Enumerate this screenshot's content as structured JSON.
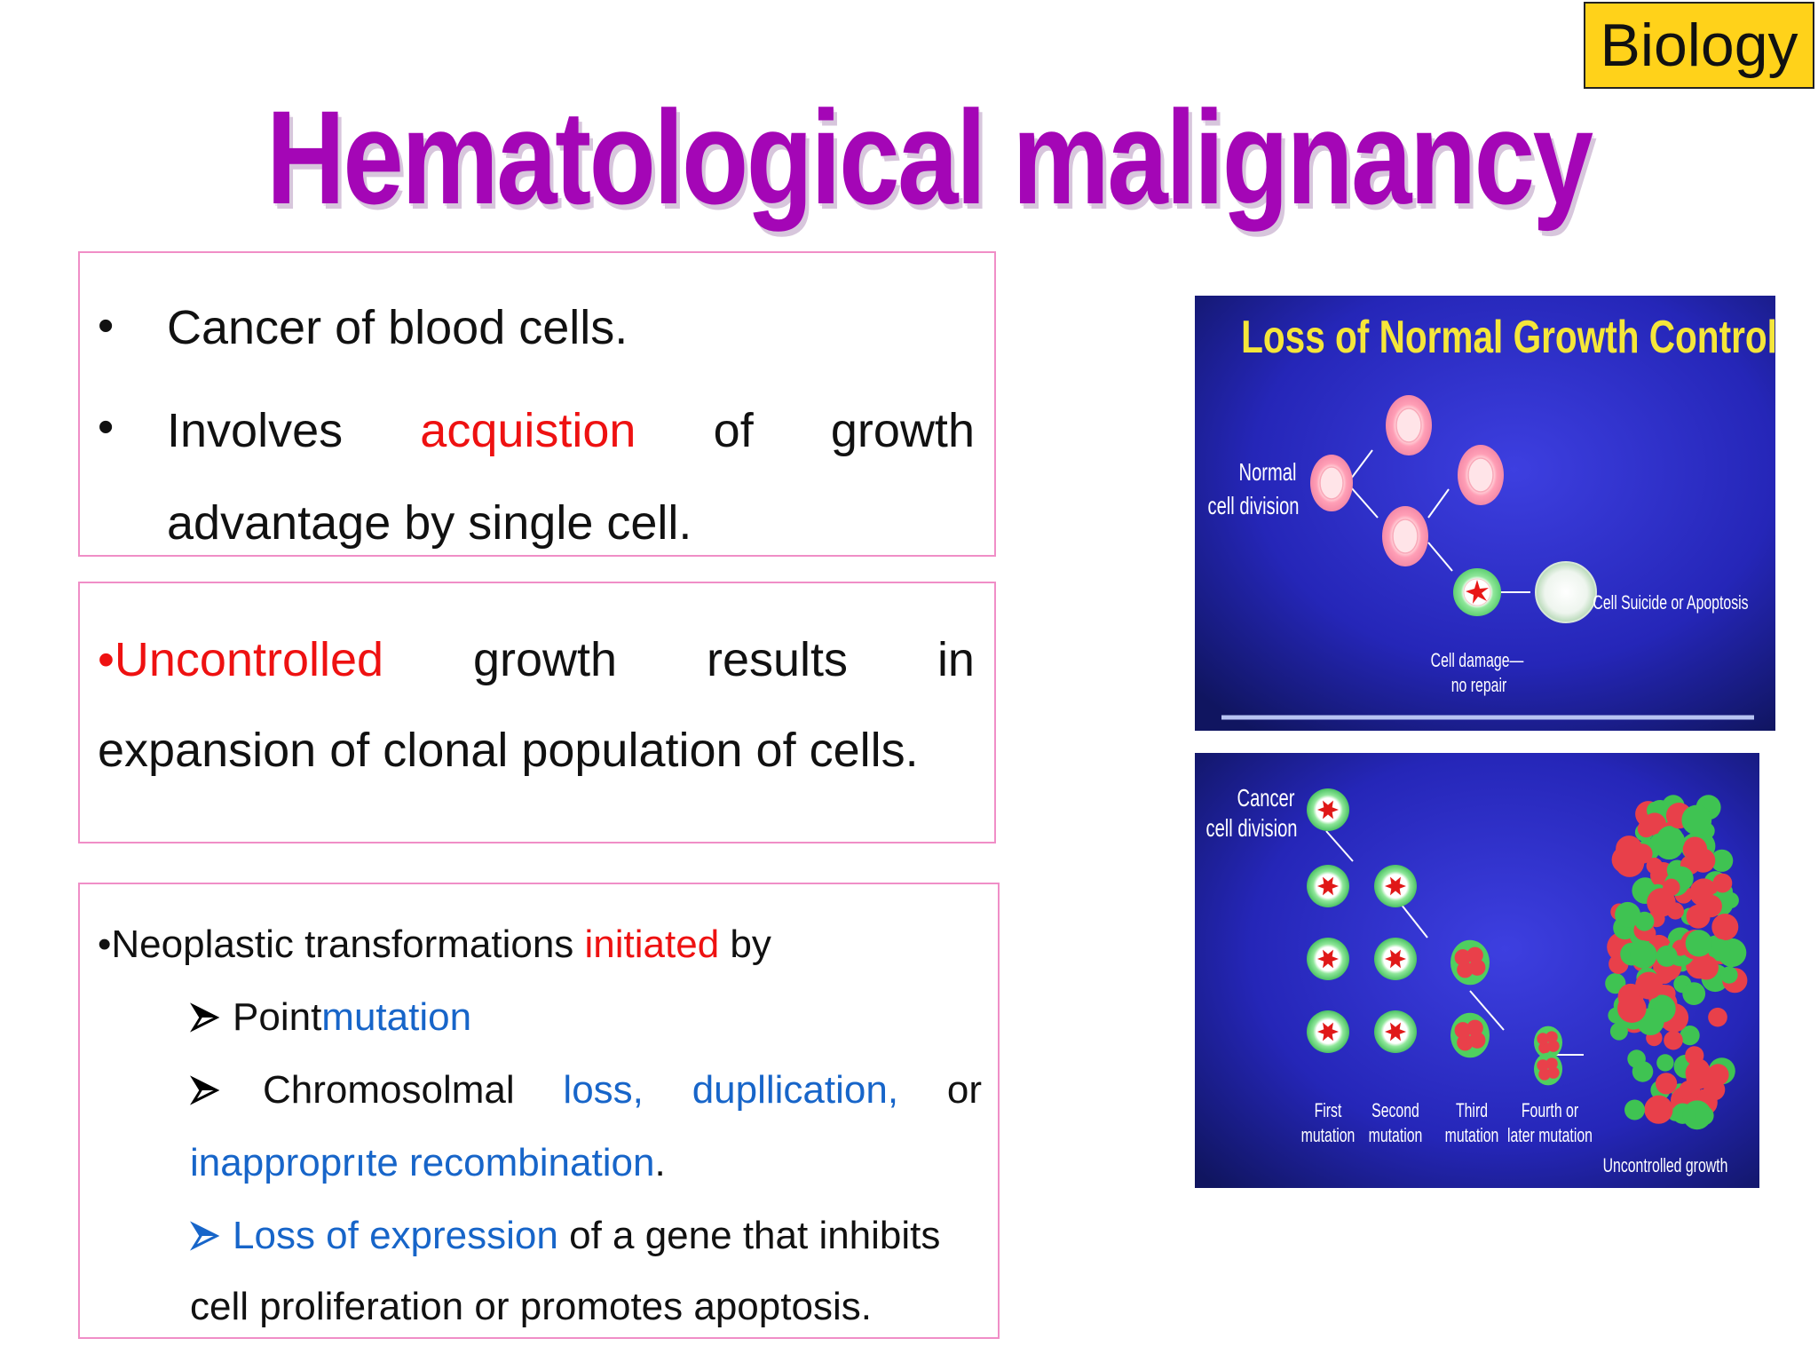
{
  "tag": {
    "label": "Biology"
  },
  "title": "Hematological malignancy",
  "box1": {
    "bullet1": "Cancer of blood cells.",
    "bullet2_words": [
      "Involves",
      "acquistion",
      "of",
      "growth"
    ],
    "bullet2_line2": "advantage by single cell."
  },
  "box2": {
    "line1_words": [
      "•Uncontrolled",
      "growth",
      "results",
      "in"
    ],
    "line2": "expansion of clonal population of cells."
  },
  "box3": {
    "intro_prefix": "•Neoplastic transformations ",
    "intro_highlight": "initiated",
    "intro_suffix": " by",
    "item1_prefix": "Point ",
    "item1_highlight": "mutation",
    "item2_words": [
      "Chromosolmal",
      "loss,",
      "dupllication,",
      "or"
    ],
    "item2_line2_highlight": "inapproprıte recombination",
    "item2_line2_suffix": ".",
    "item3_highlight": "Loss of expression",
    "item3_suffix": " of a gene that inhibits",
    "item3_line2": "cell proliferation or promotes apoptosis."
  },
  "panel1": {
    "title": "Loss of Normal Growth Control",
    "label_normal_1": "Normal",
    "label_normal_2": "cell division",
    "label_apoptosis": "Cell Suicide or Apoptosis",
    "label_damage_1": "Cell damage—",
    "label_damage_2": "no repair"
  },
  "panel2": {
    "label_cancer_1": "Cancer",
    "label_cancer_2": "cell division",
    "label_first_1": "First",
    "label_first_2": "mutation",
    "label_second_1": "Second",
    "label_second_2": "mutation",
    "label_third_1": "Third",
    "label_third_2": "mutation",
    "label_fourth_1": "Fourth or",
    "label_fourth_2": "later mutation",
    "label_uncontrolled": "Uncontrolled growth"
  },
  "colors": {
    "title": "#a406b6",
    "tag_bg": "#ffd21a",
    "box_border": "#f08ec7",
    "highlight_red": "#ee1111",
    "highlight_blue": "#1765c9",
    "panel_title": "#f5e63a"
  }
}
